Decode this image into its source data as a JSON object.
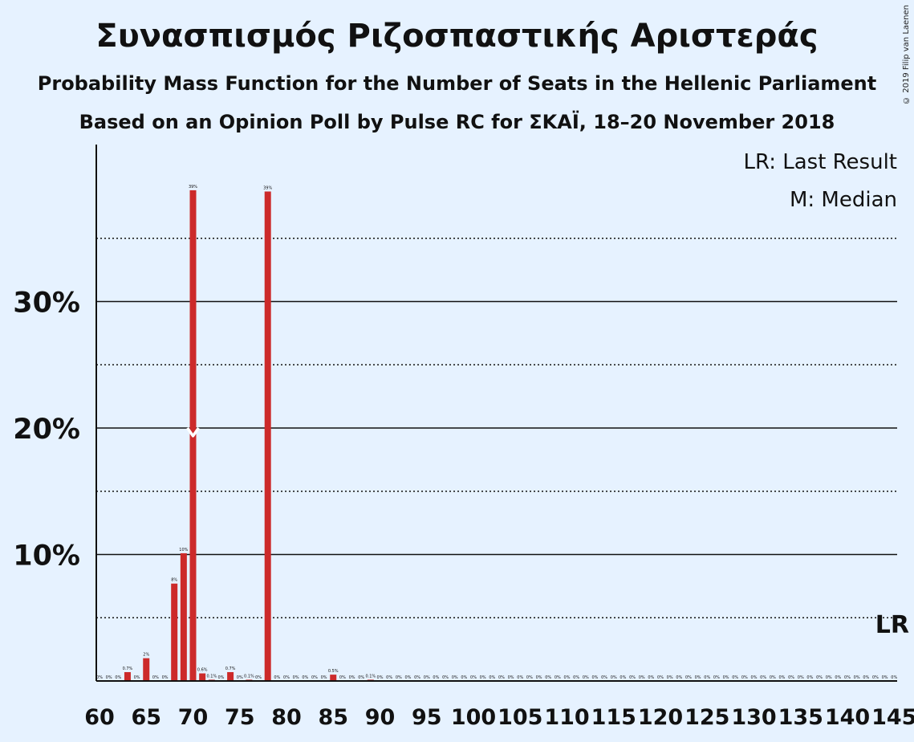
{
  "header": {
    "title": "Συνασπισμός Ριζοσπαστικής Αριστεράς",
    "subtitle1": "Probability Mass Function for the Number of Seats in the Hellenic Parliament",
    "subtitle2": "Based on an Opinion Poll by Pulse RC for ΣΚΑΪ, 18–20 November 2018",
    "copyright": "© 2019 Filip van Laenen"
  },
  "legend": {
    "lr": "LR: Last Result",
    "m": "M: Median"
  },
  "markers": {
    "lr_label": "LR",
    "median_label": "M"
  },
  "colors": {
    "bar": "#cc2a2a",
    "background": "#e6f2ff",
    "axis": "#111111"
  },
  "chart_data": {
    "type": "bar",
    "xlabel": "",
    "ylabel": "",
    "x": [
      60,
      61,
      62,
      63,
      64,
      65,
      66,
      67,
      68,
      69,
      70,
      71,
      72,
      73,
      74,
      75,
      76,
      77,
      78,
      79,
      80,
      81,
      82,
      83,
      84,
      85,
      86,
      87,
      88,
      89,
      90,
      91,
      92,
      93,
      94,
      95,
      96,
      97,
      98,
      99,
      100,
      101,
      102,
      103,
      104,
      105,
      106,
      107,
      108,
      109,
      110,
      111,
      112,
      113,
      114,
      115,
      116,
      117,
      118,
      119,
      120,
      121,
      122,
      123,
      124,
      125,
      126,
      127,
      128,
      129,
      130,
      131,
      132,
      133,
      134,
      135,
      136,
      137,
      138,
      139,
      140,
      141,
      142,
      143,
      144,
      145
    ],
    "values": [
      0,
      0,
      0,
      0.7,
      0,
      1.8,
      0,
      0,
      7.7,
      10.1,
      38.8,
      0.6,
      0.1,
      0,
      0.7,
      0,
      0.1,
      0,
      38.7,
      0,
      0,
      0,
      0,
      0,
      0,
      0.5,
      0,
      0,
      0,
      0.1,
      0,
      0,
      0,
      0,
      0,
      0,
      0,
      0,
      0,
      0,
      0,
      0,
      0,
      0,
      0,
      0,
      0,
      0,
      0,
      0,
      0,
      0,
      0,
      0,
      0,
      0,
      0,
      0,
      0,
      0,
      0,
      0,
      0,
      0,
      0,
      0,
      0,
      0,
      0,
      0,
      0,
      0,
      0,
      0,
      0,
      0,
      0,
      0,
      0,
      0,
      0,
      0,
      0,
      0,
      0,
      0
    ],
    "bar_labels": [
      "0%",
      "0%",
      "0%",
      "0.7%",
      "0%",
      "2%",
      "0%",
      "0%",
      "8%",
      "10%",
      "39%",
      "0.6%",
      "0.1%",
      "0%",
      "0.7%",
      "0%",
      "0.1%",
      "0%",
      "39%",
      "0%",
      "0%",
      "0%",
      "0%",
      "0%",
      "0%",
      "0.5%",
      "0%",
      "0%",
      "0%",
      "0.1%",
      "0%",
      "0%",
      "0%",
      "0%",
      "0%",
      "0%",
      "0%",
      "0%",
      "0%",
      "0%",
      "0%",
      "0%",
      "0%",
      "0%",
      "0%",
      "0%",
      "0%",
      "0%",
      "0%",
      "0%",
      "0%",
      "0%",
      "0%",
      "0%",
      "0%",
      "0%",
      "0%",
      "0%",
      "0%",
      "0%",
      "0%",
      "0%",
      "0%",
      "0%",
      "0%",
      "0%",
      "0%",
      "0%",
      "0%",
      "0%",
      "0%",
      "0%",
      "0%",
      "0%",
      "0%",
      "0%",
      "0%",
      "0%",
      "0%",
      "0%",
      "0%",
      "0%",
      "0%",
      "0%",
      "0%",
      "0%"
    ],
    "x_ticks": [
      60,
      65,
      70,
      75,
      80,
      85,
      90,
      95,
      100,
      105,
      110,
      115,
      120,
      125,
      130,
      135,
      140,
      145
    ],
    "y_ticks": [
      {
        "value": 10,
        "label": "10%"
      },
      {
        "value": 20,
        "label": "20%"
      },
      {
        "value": 30,
        "label": "30%"
      }
    ],
    "y_minor_ticks": [
      5,
      15,
      25,
      35
    ],
    "ylim": [
      0,
      42
    ],
    "xlim": [
      60,
      145
    ],
    "median": 70,
    "last_result": 145,
    "grid": true,
    "legend_position": "top-right"
  }
}
